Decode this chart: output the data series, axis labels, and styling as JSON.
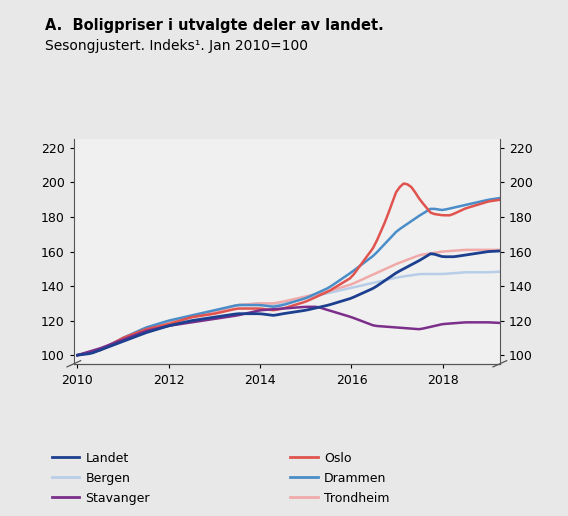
{
  "title_line1": "A.  Boligpriser i utvalgte deler av landet.",
  "title_line2": "Sesongjustert. Indeks¹. Jan 2010=100",
  "background_color": "#e8e8e8",
  "plot_bg_color": "#f0f0f0",
  "ylim": [
    95,
    225
  ],
  "yticks": [
    100,
    120,
    140,
    160,
    180,
    200,
    220
  ],
  "xlim_left": 2010.0,
  "xlim_right": 2019.25,
  "xticks": [
    2010,
    2012,
    2014,
    2016,
    2018
  ],
  "series_colors": {
    "Landet": "#1c3f8f",
    "Oslo": "#e0534e",
    "Bergen": "#b8cee8",
    "Drammen": "#4a8dc8",
    "Stavanger": "#7b2f8a",
    "Trondheim": "#f0aaaa"
  },
  "legend_entries": [
    {
      "label": "Landet",
      "color": "#1c3f8f"
    },
    {
      "label": "Oslo",
      "color": "#e0534e"
    },
    {
      "label": "Bergen",
      "color": "#b8cee8"
    },
    {
      "label": "Drammen",
      "color": "#4a8dc8"
    },
    {
      "label": "Stavanger",
      "color": "#7b2f8a"
    },
    {
      "label": "Trondheim",
      "color": "#f0aaaa"
    }
  ]
}
